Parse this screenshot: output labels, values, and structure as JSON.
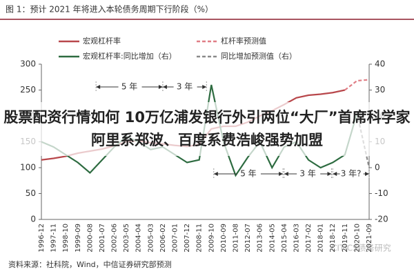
{
  "chart_data": {
    "type": "line",
    "title": "图 1：预计 2021 年将进入本轮债务周期下行阶段（%）",
    "categories": [
      "1996-12",
      "1997-11",
      "1998-10",
      "1999-09",
      "2000-08",
      "2001-07",
      "2002-06",
      "2003-05",
      "2004-04",
      "2005-03",
      "2006-02",
      "2007-01",
      "2007-12",
      "2008-11",
      "2009-10",
      "2010-09",
      "2011-08",
      "2012-07",
      "2013-06",
      "2014-05",
      "2015-04",
      "2016-03",
      "2017-02",
      "2018-01",
      "2018-12",
      "2019-11",
      "2020-10",
      "2021-09"
    ],
    "series": [
      {
        "name": "宏观杠杆率",
        "color": "#b8474b",
        "dashed": false,
        "values": [
          115,
          118,
          122,
          128,
          132,
          136,
          142,
          150,
          152,
          148,
          146,
          143,
          141,
          145,
          175,
          180,
          180,
          188,
          200,
          210,
          222,
          235,
          240,
          242,
          245,
          250,
          null,
          null
        ]
      },
      {
        "name": "杠杆率预测值",
        "color": "#e07e86",
        "dashed": true,
        "values": [
          null,
          null,
          null,
          null,
          null,
          null,
          null,
          null,
          null,
          null,
          null,
          null,
          null,
          null,
          null,
          null,
          null,
          null,
          null,
          null,
          null,
          null,
          null,
          null,
          null,
          250,
          268,
          270
        ]
      },
      {
        "name": "宏观杠杆率:同比增加（右）",
        "color": "#2d6b40",
        "dashed": false,
        "axis": "y2",
        "values": [
          10,
          8,
          5,
          2,
          -2,
          3,
          8,
          12,
          10,
          7,
          8,
          5,
          2,
          3,
          32,
          10,
          -3,
          4,
          10,
          0,
          8,
          10,
          3,
          0,
          2,
          5,
          21,
          null
        ]
      },
      {
        "name": "同比增加预测值（右）",
        "color": "#8a8a8a",
        "dashed": true,
        "axis": "y2",
        "values": [
          null,
          null,
          null,
          null,
          null,
          null,
          null,
          null,
          null,
          null,
          null,
          null,
          null,
          null,
          null,
          null,
          null,
          null,
          null,
          null,
          null,
          null,
          null,
          null,
          null,
          null,
          21,
          0
        ]
      }
    ],
    "ylim": [
      0,
      300
    ],
    "yticks": [
      0,
      50,
      100,
      150,
      200,
      250,
      300
    ],
    "y2lim": [
      -20,
      40
    ],
    "y2ticks": [
      -20,
      -10,
      0,
      10,
      20,
      30,
      40
    ],
    "annotations": [
      "5 年",
      "3 年",
      "5 年",
      "3 年",
      "3 年?"
    ],
    "source": "资料来源：社科院，Wind，中信证券研究部预测",
    "watermark": "CITICS债务研究",
    "overlay_text": "股票配资行情如何 10万亿浦发银行外引两位“大厂”首席科学家 阿里系郑波、百度系费浩峻强势加盟"
  }
}
